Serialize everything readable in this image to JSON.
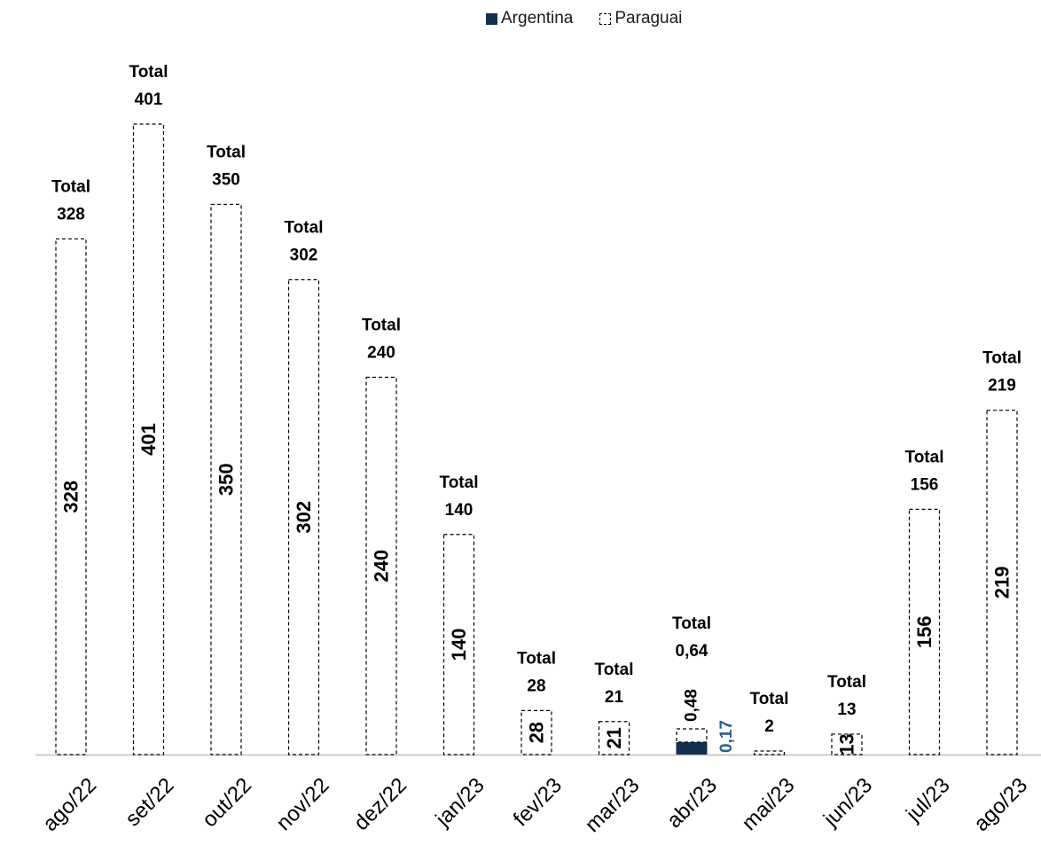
{
  "chart_data": {
    "type": "bar",
    "stacked": true,
    "categories": [
      "ago/22",
      "set/22",
      "out/22",
      "nov/22",
      "dez/22",
      "jan/23",
      "fev/23",
      "mar/23",
      "abr/23",
      "mai/23",
      "jun/23",
      "jul/23",
      "ago/23"
    ],
    "series": [
      {
        "name": "Argentina",
        "values": [
          0,
          0,
          0,
          0,
          0,
          0,
          0,
          0,
          0.17,
          0,
          0,
          0,
          0
        ],
        "labels": [
          "",
          "",
          "",
          "",
          "",
          "",
          "",
          "",
          "0,17",
          "",
          "",
          "",
          ""
        ],
        "color": "#14304f",
        "style": "solid"
      },
      {
        "name": "Paraguai",
        "values": [
          328,
          401,
          350,
          302,
          240,
          140,
          28,
          21,
          0.48,
          2,
          13,
          156,
          219
        ],
        "labels": [
          "328",
          "401",
          "350",
          "302",
          "240",
          "140",
          "28",
          "21",
          "0,48",
          "",
          "13",
          "156",
          "219"
        ],
        "color": "#ffffff",
        "style": "dashed"
      }
    ],
    "totals_prefix": "Total",
    "totals": [
      "328",
      "401",
      "350",
      "302",
      "240",
      "140",
      "28",
      "21",
      "0,64",
      "2",
      "13",
      "156",
      "219"
    ],
    "ylim": [
      0,
      401
    ],
    "legend_position": "top-center",
    "grid": false,
    "label_color_argentina": "#2e5b8f"
  }
}
